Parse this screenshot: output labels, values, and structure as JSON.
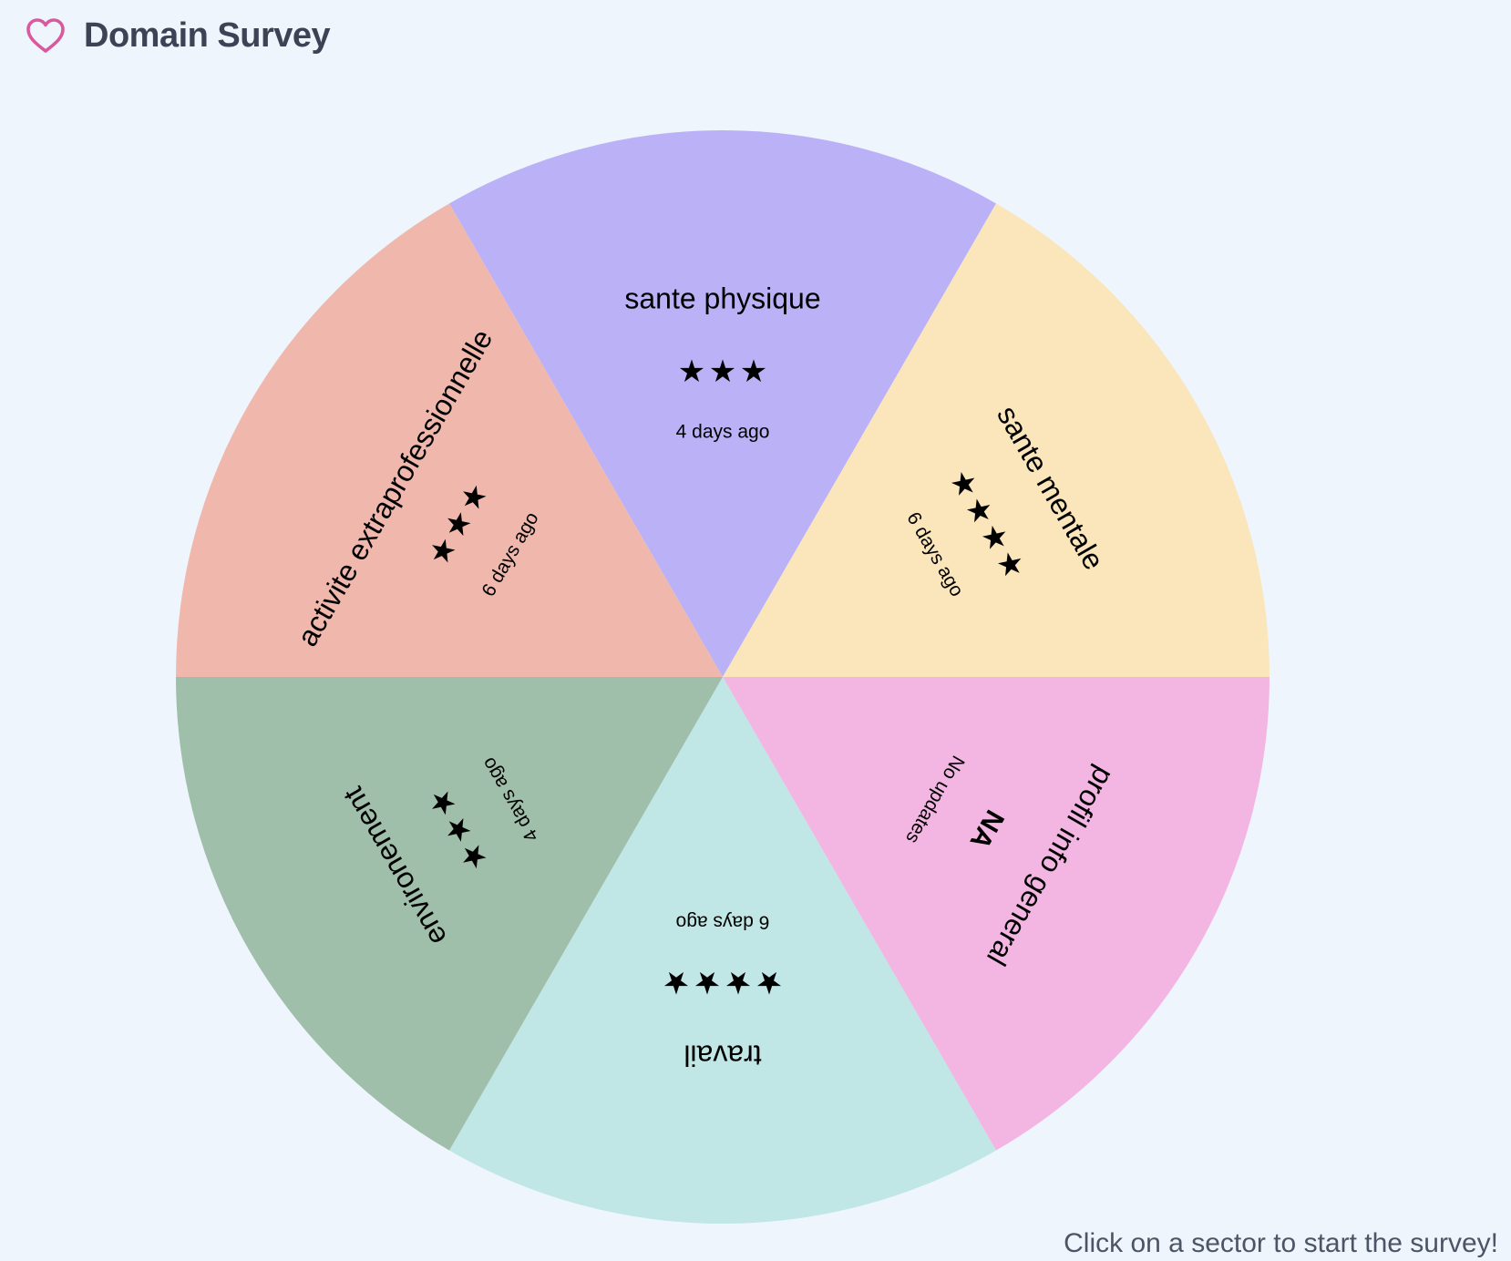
{
  "header": {
    "title": "Domain Survey",
    "icon": "heart-icon"
  },
  "footer": {
    "hint": "Click on a sector to start the survey!"
  },
  "sectors": [
    {
      "id": "sante-physique",
      "name": "sante physique",
      "stars": 3,
      "updated": "4 days ago",
      "color": "#bab1f7"
    },
    {
      "id": "sante-mentale",
      "name": "sante mentale",
      "stars": 4,
      "updated": "6 days ago",
      "color": "#fbe5bb"
    },
    {
      "id": "profil-info-general",
      "name": "profil info general",
      "stars": 0,
      "rating_label": "NA",
      "updated": "No updates",
      "color": "#f3b6e3"
    },
    {
      "id": "travail",
      "name": "travail",
      "stars": 4,
      "updated": "6 days ago",
      "color": "#c0e6e6"
    },
    {
      "id": "environement",
      "name": "environement",
      "stars": 3,
      "updated": "4 days ago",
      "color": "#9fbfaa"
    },
    {
      "id": "activite-extraprofessionnelle",
      "name": "activite extraprofessionnelle",
      "stars": 3,
      "updated": "6 days ago",
      "color": "#f0b8ad"
    }
  ],
  "star_glyph": "★"
}
